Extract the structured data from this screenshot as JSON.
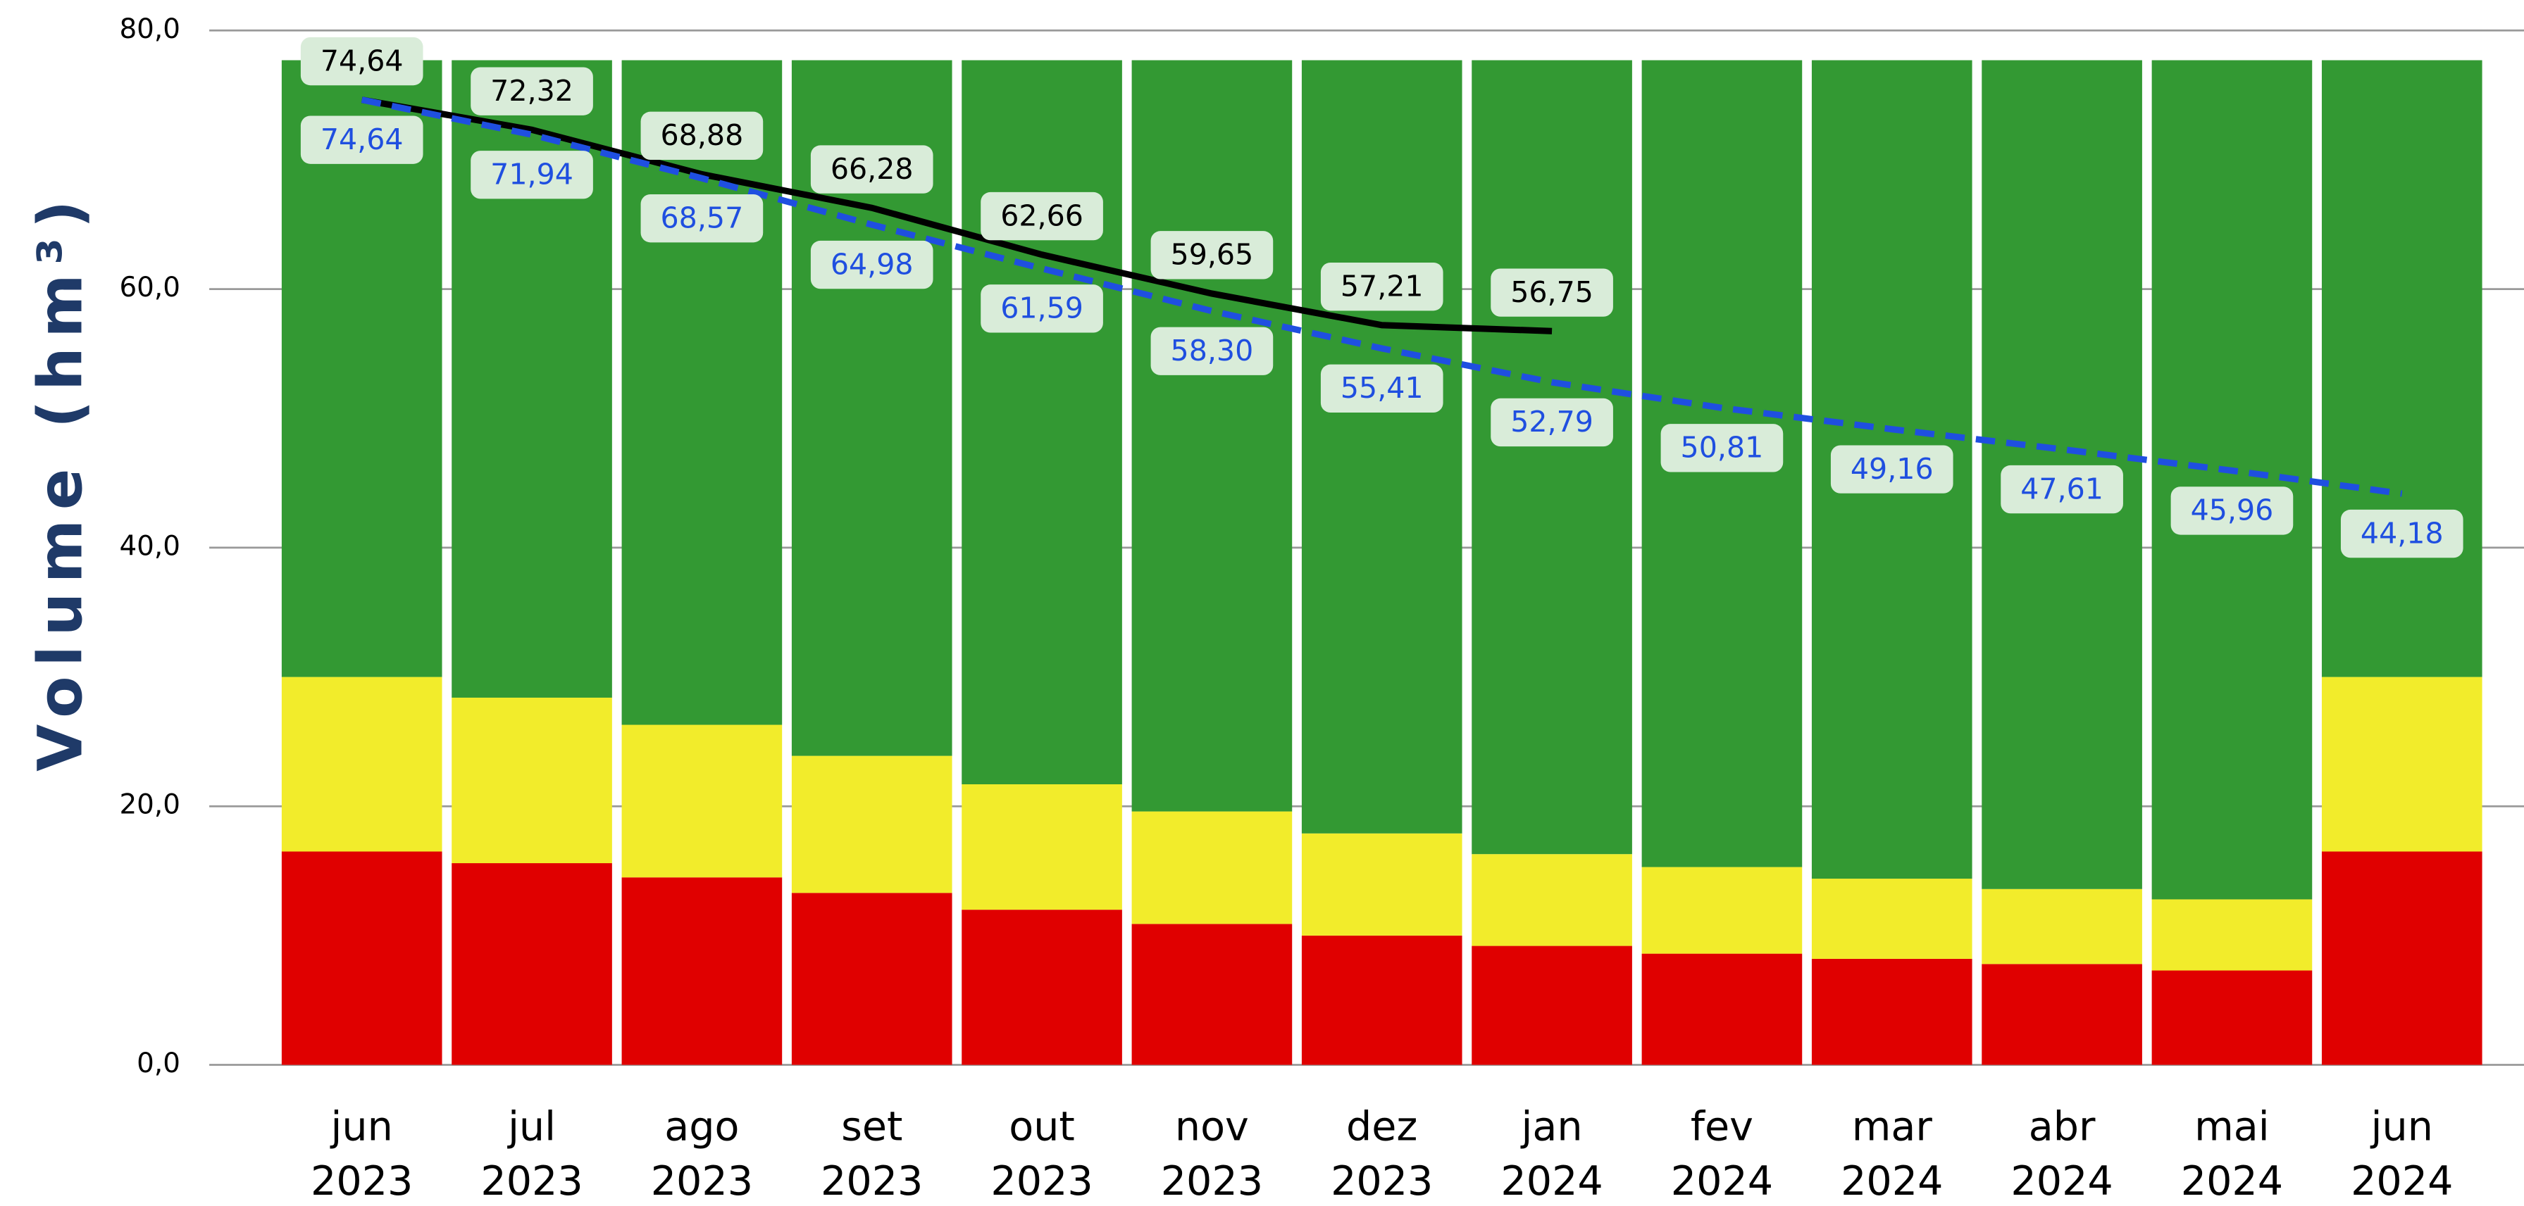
{
  "chart_data": {
    "type": "bar",
    "y_label": "Volume (hm³)",
    "categories": [
      [
        "jun",
        "2023"
      ],
      [
        "jul",
        "2023"
      ],
      [
        "ago",
        "2023"
      ],
      [
        "set",
        "2023"
      ],
      [
        "out",
        "2023"
      ],
      [
        "nov",
        "2023"
      ],
      [
        "dez",
        "2023"
      ],
      [
        "jan",
        "2024"
      ],
      [
        "fev",
        "2024"
      ],
      [
        "mar",
        "2024"
      ],
      [
        "abr",
        "2024"
      ],
      [
        "mai",
        "2024"
      ],
      [
        "jun",
        "2024"
      ]
    ],
    "ylim": [
      0,
      80
    ],
    "yticks": [
      {
        "value": 0,
        "label": "0,0"
      },
      {
        "value": 20,
        "label": "20,0"
      },
      {
        "value": 40,
        "label": "40,0"
      },
      {
        "value": 60,
        "label": "60,0"
      },
      {
        "value": 80,
        "label": "80,0"
      }
    ],
    "grid": true,
    "stacks": [
      {
        "color": "#e00000",
        "values": [
          16.5,
          15.6,
          14.5,
          13.3,
          12.0,
          10.9,
          10.0,
          9.2,
          8.6,
          8.2,
          7.8,
          7.3,
          16.5
        ]
      },
      {
        "color": "#f2ec2b",
        "values": [
          13.5,
          12.8,
          11.8,
          10.6,
          9.7,
          8.7,
          7.9,
          7.1,
          6.7,
          6.2,
          5.8,
          5.5,
          13.5
        ]
      },
      {
        "color": "#339933",
        "values": [
          47.7,
          49.3,
          51.4,
          53.8,
          56.0,
          58.1,
          59.8,
          61.4,
          62.4,
          63.3,
          64.1,
          64.9,
          47.7
        ]
      }
    ],
    "lines": [
      {
        "color": "#000000",
        "dashed": false,
        "label_position": "above",
        "values": [
          74.64,
          72.32,
          68.88,
          66.28,
          62.66,
          59.65,
          57.21,
          56.75,
          null,
          null,
          null,
          null,
          null
        ],
        "value_labels": [
          "74,64",
          "72,32",
          "68,88",
          "66,28",
          "62,66",
          "59,65",
          "57,21",
          "56,75",
          null,
          null,
          null,
          null,
          null
        ]
      },
      {
        "color": "#1f4fe0",
        "dashed": true,
        "label_position": "below",
        "values": [
          74.64,
          71.94,
          68.57,
          64.98,
          61.59,
          58.3,
          55.41,
          52.79,
          50.81,
          49.16,
          47.61,
          45.96,
          44.18
        ],
        "value_labels": [
          "74,64",
          "71,94",
          "68,57",
          "64,98",
          "61,59",
          "58,30",
          "55,41",
          "52,79",
          "50,81",
          "49,16",
          "47,61",
          "45,96",
          "44,18"
        ]
      }
    ]
  }
}
